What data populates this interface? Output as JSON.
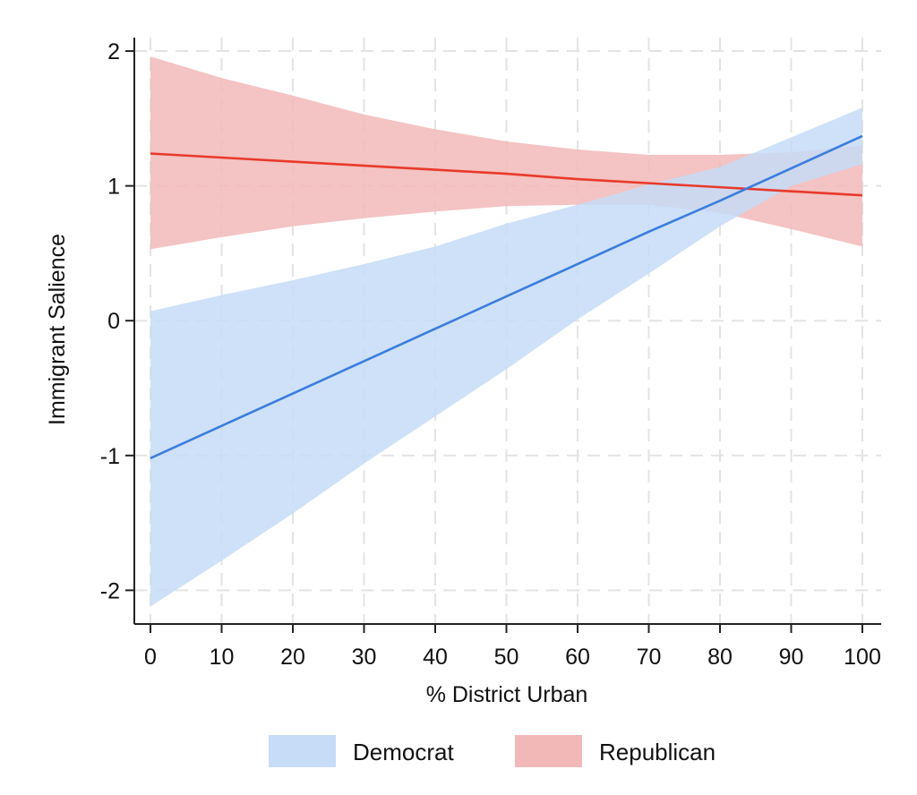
{
  "chart_data": {
    "type": "line",
    "title": "",
    "xlabel": "% District Urban",
    "ylabel": "Immigrant Salience",
    "xlim": [
      0,
      100
    ],
    "ylim": [
      -2.25,
      2.1
    ],
    "x_ticks": [
      0,
      10,
      20,
      30,
      40,
      50,
      60,
      70,
      80,
      90,
      100
    ],
    "y_ticks": [
      -2,
      -1,
      0,
      1,
      2
    ],
    "x_tick_labels": [
      "0",
      "10",
      "20",
      "30",
      "40",
      "50",
      "60",
      "70",
      "80",
      "90",
      "100"
    ],
    "y_tick_labels": [
      "-2",
      "-1",
      "0",
      "1",
      "2"
    ],
    "grid": true,
    "legend_position": "bottom",
    "x": [
      0,
      10,
      20,
      30,
      40,
      50,
      60,
      70,
      80,
      90,
      100
    ],
    "series": [
      {
        "name": "Democrat",
        "line_color": "#3b7ddd",
        "band_color": "#c6dcf7",
        "values": [
          -1.02,
          -0.78,
          -0.54,
          -0.3,
          -0.06,
          0.18,
          0.42,
          0.66,
          0.89,
          1.13,
          1.37
        ],
        "ci_lower": [
          -2.12,
          -1.78,
          -1.43,
          -1.06,
          -0.71,
          -0.36,
          0.01,
          0.35,
          0.7,
          1.0,
          1.16
        ],
        "ci_upper": [
          0.07,
          0.19,
          0.3,
          0.42,
          0.55,
          0.72,
          0.86,
          1.01,
          1.14,
          1.36,
          1.58
        ]
      },
      {
        "name": "Republican",
        "line_color": "#e8392b",
        "band_color": "#f2b8b8",
        "values": [
          1.24,
          1.21,
          1.18,
          1.15,
          1.12,
          1.09,
          1.05,
          1.02,
          0.99,
          0.96,
          0.93
        ],
        "ci_lower": [
          0.53,
          0.62,
          0.7,
          0.76,
          0.81,
          0.85,
          0.86,
          0.86,
          0.8,
          0.68,
          0.55
        ],
        "ci_upper": [
          1.96,
          1.8,
          1.67,
          1.53,
          1.42,
          1.33,
          1.27,
          1.23,
          1.23,
          1.25,
          1.3
        ]
      }
    ]
  }
}
